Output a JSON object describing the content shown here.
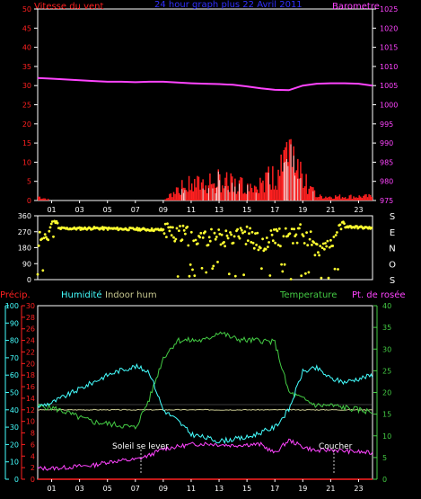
{
  "colors": {
    "wind": "#ff2020",
    "gust": "#ffffff",
    "baro": "#ff44ff",
    "dir": "#ffff30",
    "precip": "#ff2020",
    "hum": "#44ffff",
    "indoor": "#c8c890",
    "temp": "#44cc44",
    "dew": "#ff44ff",
    "axis": "#ffffff",
    "title": "#3030ff",
    "grid": "#555555"
  },
  "hour_ticks": [
    "01",
    "03",
    "05",
    "07",
    "09",
    "11",
    "13",
    "15",
    "17",
    "19",
    "21",
    "23"
  ],
  "top": {
    "title": "24 hour graph plus  22 Avril 2011",
    "left_label": "Vitesse du vent",
    "right_label": "Barometre",
    "left_ticks": [
      "0",
      "5",
      "10",
      "15",
      "20",
      "25",
      "30",
      "35",
      "40",
      "45",
      "50"
    ],
    "right_ticks": [
      "975",
      "980",
      "985",
      "990",
      "995",
      "1000",
      "1005",
      "1010",
      "1015",
      "1020",
      "1025"
    ]
  },
  "mid": {
    "left_ticks": [
      "0",
      "90",
      "180",
      "270",
      "360"
    ],
    "compass": [
      "S",
      "E",
      "N",
      "O",
      "S"
    ]
  },
  "bottom": {
    "labels": {
      "precip": "Précip.",
      "hum": "Humidité",
      "indoor": "Indoor hum",
      "temp": "Temperature",
      "dew": "Pt. de rosée"
    },
    "precip_ticks": [
      "0",
      "2",
      "4",
      "6",
      "8",
      "10",
      "12",
      "14",
      "16",
      "18",
      "20",
      "22",
      "24",
      "26",
      "28",
      "30"
    ],
    "hum_ticks": [
      "0",
      "10",
      "20",
      "30",
      "40",
      "50",
      "60",
      "70",
      "80",
      "90",
      "100"
    ],
    "temp_ticks": [
      "0",
      "5",
      "10",
      "15",
      "20",
      "25",
      "30",
      "35",
      "40"
    ],
    "sunrise_label": "Soleil se lever",
    "sunset_label": "Coucher"
  },
  "chart_data": [
    {
      "type": "line",
      "x": [
        0,
        1,
        2,
        3,
        4,
        5,
        6,
        7,
        8,
        9,
        10,
        11,
        12,
        13,
        14,
        15,
        16,
        17,
        18,
        19,
        20,
        21,
        22,
        23,
        24
      ],
      "xlabel": "",
      "ylabel": "Vitesse du vent",
      "ylabel_right": "Barometre",
      "ylim": [
        0,
        50
      ],
      "ylim_right": [
        975,
        1025
      ],
      "series": [
        {
          "name": "Vitesse du vent",
          "values": [
            1,
            0,
            0,
            0,
            0,
            0,
            0,
            0,
            0,
            0,
            3,
            4,
            4,
            5,
            4,
            4,
            5,
            6,
            10,
            5,
            1,
            1,
            1,
            1,
            1
          ]
        },
        {
          "name": "Barometre",
          "values": [
            1007,
            1006.8,
            1006.6,
            1006.4,
            1006.2,
            1006,
            1006,
            1005.9,
            1006,
            1006,
            1005.8,
            1005.6,
            1005.5,
            1005.4,
            1005.2,
            1004.8,
            1004.3,
            1003.9,
            1003.8,
            1005,
            1005.5,
            1005.6,
            1005.6,
            1005.5,
            1005
          ]
        }
      ]
    },
    {
      "type": "scatter",
      "x": [
        0,
        1,
        2,
        3,
        4,
        5,
        6,
        7,
        8,
        9,
        10,
        11,
        12,
        13,
        14,
        15,
        16,
        17,
        18,
        19,
        20,
        21,
        22,
        23,
        24
      ],
      "ylabel": "Wind direction",
      "ylim": [
        0,
        360
      ],
      "series": [
        {
          "name": "Direction",
          "values": [
            230,
            290,
            288,
            288,
            290,
            288,
            286,
            285,
            282,
            280,
            260,
            240,
            250,
            230,
            260,
            250,
            200,
            250,
            230,
            270,
            180,
            220,
            300,
            295,
            290
          ]
        }
      ]
    },
    {
      "type": "line",
      "x": [
        0,
        1,
        2,
        3,
        4,
        5,
        6,
        7,
        8,
        9,
        10,
        11,
        12,
        13,
        14,
        15,
        16,
        17,
        18,
        19,
        20,
        21,
        22,
        23,
        24
      ],
      "ylabel": "Humidité",
      "ylabel_right": "Temperature",
      "ylim": [
        0,
        100
      ],
      "ylim_right": [
        0,
        40
      ],
      "series": [
        {
          "name": "Précip.",
          "values": [
            0,
            0,
            0,
            0,
            0,
            0,
            0,
            0,
            0,
            0,
            0,
            0,
            0,
            0,
            0,
            0,
            0,
            0,
            0,
            0,
            0,
            0,
            0,
            0,
            0
          ]
        },
        {
          "name": "Humidité",
          "values": [
            42,
            44,
            48,
            52,
            56,
            60,
            63,
            65,
            62,
            40,
            34,
            26,
            24,
            22,
            23,
            24,
            27,
            30,
            40,
            62,
            64,
            58,
            56,
            58,
            60
          ]
        },
        {
          "name": "Indoor hum",
          "values": [
            40,
            40,
            40,
            40,
            40,
            40,
            40,
            40,
            40,
            40,
            40,
            40,
            40,
            40,
            40,
            40,
            40,
            40,
            40,
            40,
            40,
            40,
            40,
            40,
            40
          ]
        },
        {
          "name": "Temperature",
          "values": [
            16.8,
            16.5,
            15.5,
            14.2,
            13.2,
            12.8,
            12.4,
            11.8,
            18.5,
            28,
            32,
            32,
            32,
            34,
            32.5,
            32,
            32,
            31.5,
            20,
            18.5,
            17,
            17,
            16.5,
            16,
            15.5
          ]
        },
        {
          "name": "Pt. de rosée",
          "values": [
            2.5,
            2.5,
            2.7,
            3,
            3.2,
            4,
            4.3,
            4.5,
            5.5,
            7,
            7.5,
            8,
            8.2,
            8,
            7.8,
            8,
            8,
            6,
            9,
            7.5,
            6.5,
            6.8,
            6.5,
            6.3,
            6
          ]
        }
      ]
    }
  ]
}
